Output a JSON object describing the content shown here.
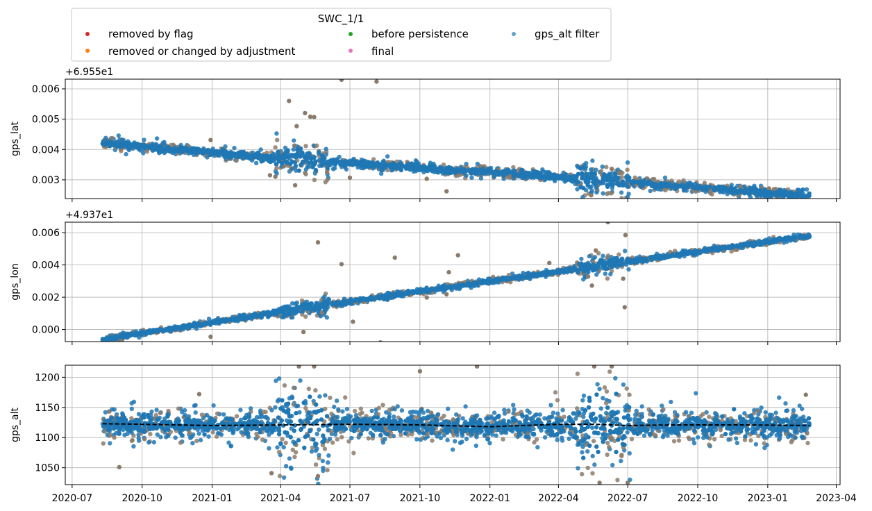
{
  "chart_data": {
    "type": "scatter",
    "legend": {
      "title": "SWC_1/1",
      "placement": "top-left",
      "entries": [
        {
          "label": "removed by flag",
          "color": "#d62728"
        },
        {
          "label": "removed or changed by adjustment",
          "color": "#ff7f0e"
        },
        {
          "label": "before persistence",
          "color": "#2ca02c"
        },
        {
          "label": "final",
          "color": "#e377c2"
        },
        {
          "label": "gps_alt filter",
          "color": "#1f77b4"
        }
      ]
    },
    "x_axis": {
      "type": "date",
      "range": [
        "2020-06-22",
        "2023-04-06"
      ],
      "ticks": [
        "2020-07",
        "2020-10",
        "2021-01",
        "2021-04",
        "2021-07",
        "2021-10",
        "2022-01",
        "2022-04",
        "2022-07",
        "2022-10",
        "2023-01",
        "2023-04"
      ],
      "data_start": "2020-08-10",
      "data_end": "2023-02-25"
    },
    "subplots": [
      {
        "ylabel": "gps_lat",
        "offset_text": "+6.955e1",
        "ylim": [
          0.00238,
          0.00632
        ],
        "yticks": [
          "0.003",
          "0.004",
          "0.005",
          "0.006"
        ],
        "grid": true,
        "trend": [
          {
            "x": "2020-08-10",
            "y": 0.00421
          },
          {
            "x": "2021-04-01",
            "y": 0.0037
          },
          {
            "x": "2022-04-01",
            "y": 0.0031
          },
          {
            "x": "2023-02-25",
            "y": 0.00246
          }
        ],
        "outliers": [
          {
            "x": "2020-12-30",
            "y": 0.00431
          },
          {
            "x": "2021-03-18",
            "y": 0.00315
          },
          {
            "x": "2021-03-25",
            "y": 0.0031
          },
          {
            "x": "2021-04-12",
            "y": 0.0056
          },
          {
            "x": "2021-04-20",
            "y": 0.00282
          },
          {
            "x": "2021-04-22",
            "y": 0.00477
          },
          {
            "x": "2021-05-03",
            "y": 0.0052
          },
          {
            "x": "2021-05-10",
            "y": 0.00508
          },
          {
            "x": "2021-05-15",
            "y": 0.00507
          },
          {
            "x": "2021-06-01",
            "y": 0.00326
          },
          {
            "x": "2021-06-20",
            "y": 0.0063
          },
          {
            "x": "2021-07-01",
            "y": 0.00307
          },
          {
            "x": "2021-08-05",
            "y": 0.00624
          },
          {
            "x": "2021-10-10",
            "y": 0.00303
          },
          {
            "x": "2021-11-05",
            "y": 0.00262
          },
          {
            "x": "2022-05-14",
            "y": 0.00249
          },
          {
            "x": "2022-06-10",
            "y": 0.00336
          },
          {
            "x": "2022-06-20",
            "y": 0.00322
          }
        ],
        "jitter": 9e-05,
        "jitter_burst": 0.0003
      },
      {
        "ylabel": "gps_lon",
        "offset_text": "+4.937e1",
        "ylim": [
          -0.00075,
          0.00665
        ],
        "yticks": [
          "0.000",
          "0.002",
          "0.004",
          "0.006"
        ],
        "grid": true,
        "trend": [
          {
            "x": "2020-08-10",
            "y": -0.00062
          },
          {
            "x": "2021-04-01",
            "y": 0.0011
          },
          {
            "x": "2022-04-01",
            "y": 0.0036
          },
          {
            "x": "2023-02-25",
            "y": 0.0058
          }
        ],
        "outliers": [
          {
            "x": "2020-12-30",
            "y": -0.00045
          },
          {
            "x": "2021-05-01",
            "y": -0.00015
          },
          {
            "x": "2021-05-20",
            "y": 0.0054
          },
          {
            "x": "2021-06-20",
            "y": 0.00405
          },
          {
            "x": "2021-07-05",
            "y": 0.00048
          },
          {
            "x": "2021-08-10",
            "y": -0.0008
          },
          {
            "x": "2021-08-29",
            "y": 0.00445
          },
          {
            "x": "2021-10-10",
            "y": 0.00198
          },
          {
            "x": "2021-11-05",
            "y": 0.00218
          },
          {
            "x": "2021-11-08",
            "y": 0.00355
          },
          {
            "x": "2021-11-20",
            "y": 0.0046
          },
          {
            "x": "2022-03-20",
            "y": 0.00412
          },
          {
            "x": "2022-05-10",
            "y": 0.00328
          },
          {
            "x": "2022-05-15",
            "y": 0.00272
          },
          {
            "x": "2022-05-20",
            "y": 0.0049
          },
          {
            "x": "2022-06-05",
            "y": 0.00665
          },
          {
            "x": "2022-06-25",
            "y": 0.00315
          },
          {
            "x": "2022-06-27",
            "y": 0.00138
          },
          {
            "x": "2022-06-28",
            "y": 0.00585
          }
        ],
        "jitter": 9e-05,
        "jitter_burst": 0.0003
      },
      {
        "ylabel": "gps_alt",
        "offset_text": "",
        "ylim": [
          1022,
          1220
        ],
        "yticks": [
          "1050",
          "1100",
          "1150",
          "1200"
        ],
        "grid": true,
        "trend": [
          {
            "x": "2020-08-10",
            "y": 1122
          },
          {
            "x": "2021-01-01",
            "y": 1121
          },
          {
            "x": "2021-07-01",
            "y": 1122
          },
          {
            "x": "2022-01-01",
            "y": 1119
          },
          {
            "x": "2022-04-01",
            "y": 1122
          },
          {
            "x": "2022-07-01",
            "y": 1120
          },
          {
            "x": "2023-02-25",
            "y": 1120
          }
        ],
        "filter_line": [
          {
            "x": "2020-08-10",
            "y": 1123
          },
          {
            "x": "2020-10-01",
            "y": 1122
          },
          {
            "x": "2021-01-01",
            "y": 1120
          },
          {
            "x": "2021-04-15",
            "y": 1121
          },
          {
            "x": "2021-07-01",
            "y": 1122
          },
          {
            "x": "2021-10-01",
            "y": 1121
          },
          {
            "x": "2022-01-01",
            "y": 1118
          },
          {
            "x": "2022-04-01",
            "y": 1122
          },
          {
            "x": "2022-05-20",
            "y": 1122
          },
          {
            "x": "2022-07-01",
            "y": 1120
          },
          {
            "x": "2022-09-01",
            "y": 1121
          },
          {
            "x": "2022-12-01",
            "y": 1121
          },
          {
            "x": "2023-02-25",
            "y": 1120
          }
        ],
        "outliers": [
          {
            "x": "2021-04-25",
            "y": 1218
          },
          {
            "x": "2021-05-15",
            "y": 1218
          },
          {
            "x": "2021-05-20",
            "y": 1036
          },
          {
            "x": "2021-10-01",
            "y": 1210
          },
          {
            "x": "2021-12-15",
            "y": 1218
          },
          {
            "x": "2022-05-18",
            "y": 1218
          },
          {
            "x": "2022-05-25",
            "y": 1025
          },
          {
            "x": "2022-06-10",
            "y": 1218
          },
          {
            "x": "2022-07-01",
            "y": 1025
          },
          {
            "x": "2021-03-20",
            "y": 1041
          },
          {
            "x": "2020-09-01",
            "y": 1051
          },
          {
            "x": "2020-12-15",
            "y": 1172
          },
          {
            "x": "2023-02-20",
            "y": 1171
          }
        ],
        "jitter": 14,
        "jitter_burst": 45
      }
    ]
  }
}
